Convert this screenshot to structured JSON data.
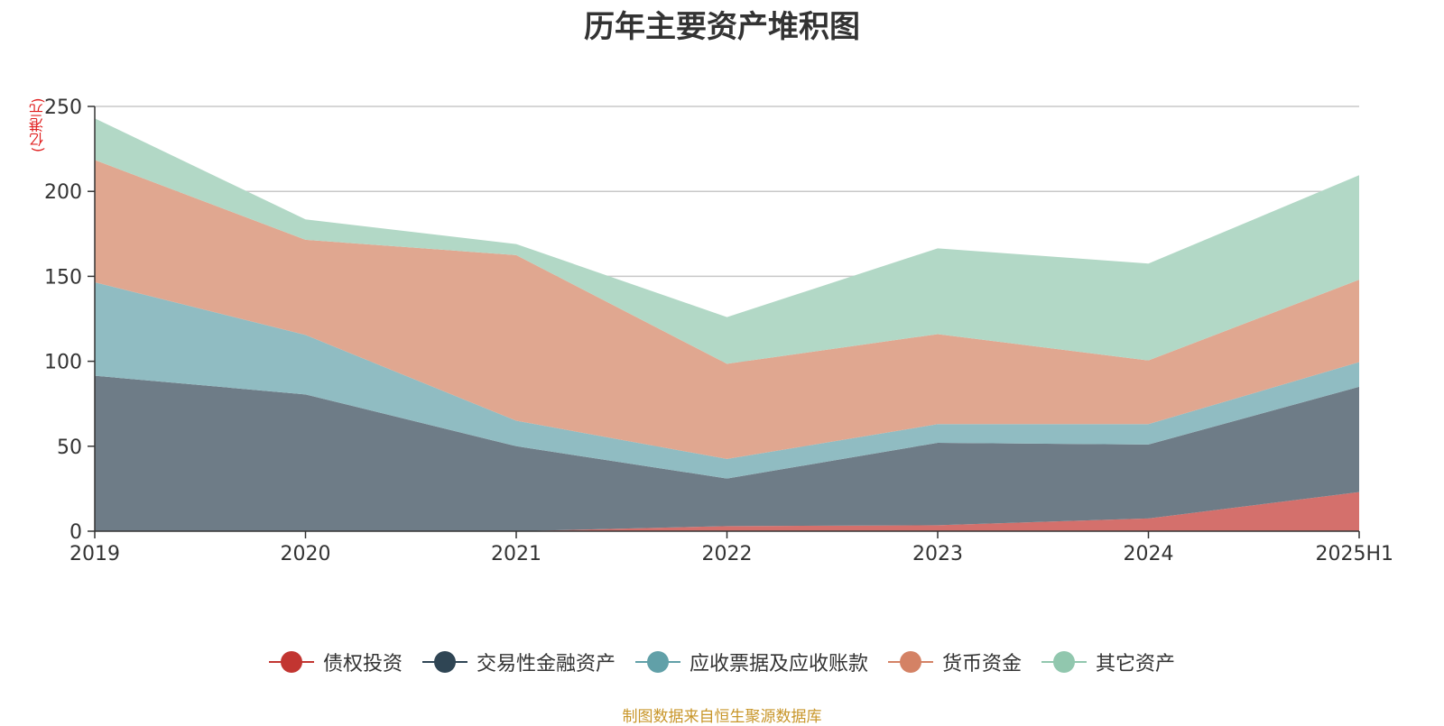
{
  "chart_data": {
    "type": "area",
    "stacked": true,
    "title": "历年主要资产堆积图",
    "unit_label": "(亿港元)",
    "categories": [
      "2019",
      "2020",
      "2021",
      "2022",
      "2023",
      "2024",
      "2025H1"
    ],
    "ylim": [
      0,
      250
    ],
    "yticks": [
      "0",
      "50",
      "100",
      "150",
      "200",
      "250"
    ],
    "grid": true,
    "legend_position": "bottom",
    "series": [
      {
        "name": "债权投资",
        "color": "#c23531",
        "fill": "#d4706c",
        "values": [
          0,
          0,
          0,
          3,
          3.5,
          7.5,
          23
        ]
      },
      {
        "name": "交易性金融资产",
        "color": "#2f4554",
        "fill": "#6e7c87",
        "values": [
          91.5,
          80.5,
          50,
          28,
          48.5,
          43.5,
          62
        ]
      },
      {
        "name": "应收票据及应收账款",
        "color": "#61a0a8",
        "fill": "#90bcc2",
        "values": [
          55,
          35,
          15,
          11.5,
          11,
          12,
          14.5
        ]
      },
      {
        "name": "货币资金",
        "color": "#d48265",
        "fill": "#e0a790",
        "values": [
          72,
          56,
          97.5,
          56,
          53,
          37.5,
          48.5
        ]
      },
      {
        "name": "其它资产",
        "color": "#91c7ae",
        "fill": "#b2d8c6",
        "values": [
          24.5,
          12,
          6.5,
          27.5,
          50.5,
          57,
          61.5
        ]
      }
    ],
    "source_note": "制图数据来自恒生聚源数据库"
  }
}
